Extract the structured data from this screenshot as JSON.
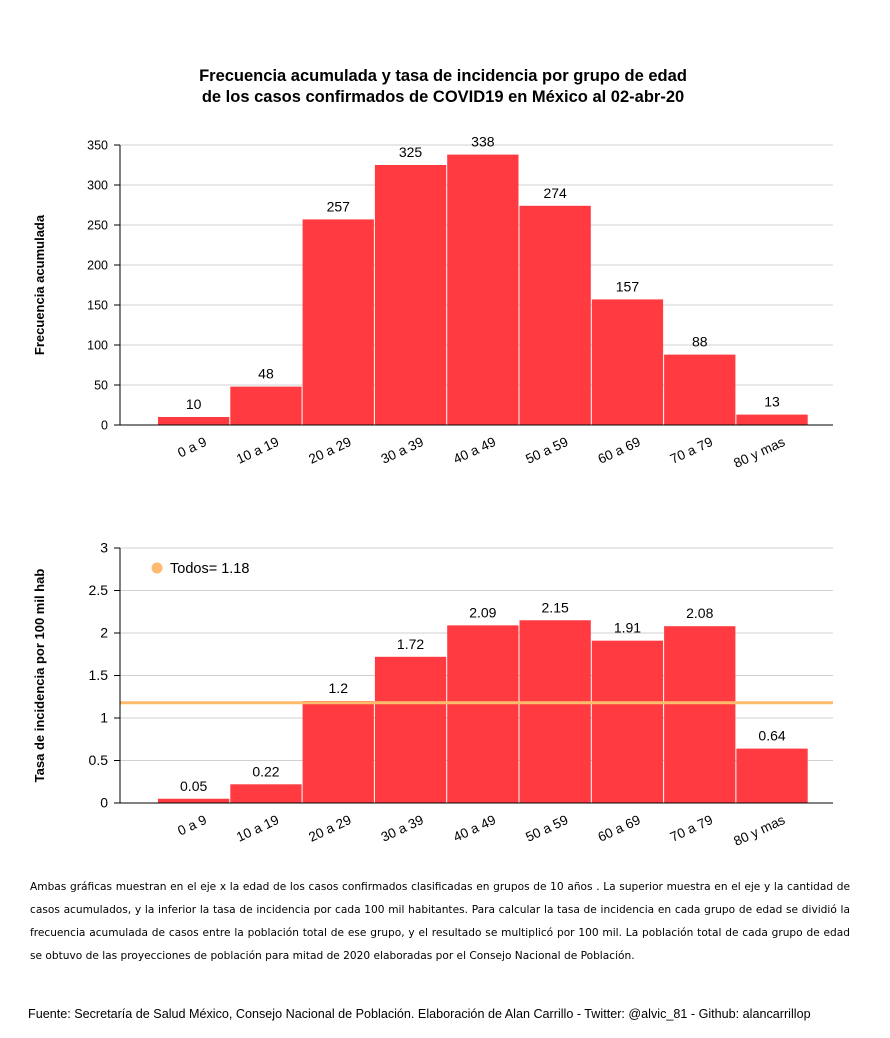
{
  "title_line1": "Frecuencia acumulada y tasa de incidencia por grupo de edad",
  "title_line2": "de los casos confirmados de COVID19 en México al 02-abr-20",
  "colors": {
    "bar": "#FF3B41",
    "reference_line": "#FDBB6D",
    "grid": "#d0d0d0"
  },
  "chart_data": [
    {
      "type": "bar",
      "categories": [
        "0 a 9",
        "10 a 19",
        "20 a 29",
        "30 a 39",
        "40 a 49",
        "50 a 59",
        "60 a 69",
        "70 a 79",
        "80 y mas"
      ],
      "values": [
        10,
        48,
        257,
        325,
        338,
        274,
        157,
        88,
        13
      ],
      "value_labels": [
        "10",
        "48",
        "257",
        "325",
        "338",
        "274",
        "157",
        "88",
        "13"
      ],
      "ylabel": "Frecuencia acumulada",
      "ylim": [
        0,
        350
      ],
      "yticks": [
        "0",
        "50",
        "100",
        "150",
        "200",
        "250",
        "300",
        "350"
      ],
      "ytick_values": [
        0,
        50,
        100,
        150,
        200,
        250,
        300,
        350
      ],
      "grid": true
    },
    {
      "type": "bar",
      "categories": [
        "0 a 9",
        "10 a 19",
        "20 a 29",
        "30 a 39",
        "40 a 49",
        "50 a 59",
        "60 a 69",
        "70 a 79",
        "80 y mas"
      ],
      "values": [
        0.05,
        0.22,
        1.2,
        1.72,
        2.09,
        2.15,
        1.91,
        2.08,
        0.64
      ],
      "value_labels": [
        "0.05",
        "0.22",
        "1.2",
        "1.72",
        "2.09",
        "2.15",
        "1.91",
        "2.08",
        "0.64"
      ],
      "ylabel": "Tasa de incidencia por 100 mil hab",
      "ylim": [
        0,
        3
      ],
      "yticks": [
        "0",
        "0.5",
        "1",
        "1.5",
        "2",
        "2.5",
        "3"
      ],
      "ytick_values": [
        0,
        0.5,
        1,
        1.5,
        2,
        2.5,
        3
      ],
      "grid": true,
      "reference_line": {
        "value": 1.18,
        "legend_label": "Todos= 1.18"
      },
      "legend_placement": "top-left"
    }
  ],
  "note": "Ambas gráficas muestran en el eje x la edad de los casos confirmados clasificadas en grupos de 10 años . La superior muestra en el eje y la cantidad de casos acumulados, y la inferior la tasa de incidencia por cada 100 mil habitantes. Para calcular la tasa de incidencia en cada grupo de edad se dividió la frecuencia acumulada de casos entre la población total de ese grupo, y el resultado se multiplicó por 100 mil. La población total de cada grupo de edad se obtuvo de las proyecciones de población para mitad de 2020 elaboradas por el Consejo Nacional de Población.",
  "source": "Fuente: Secretaría de Salud México, Consejo Nacional de Población. Elaboración de Alan Carrillo - Twitter: @alvic_81 - Github: alancarrillop"
}
